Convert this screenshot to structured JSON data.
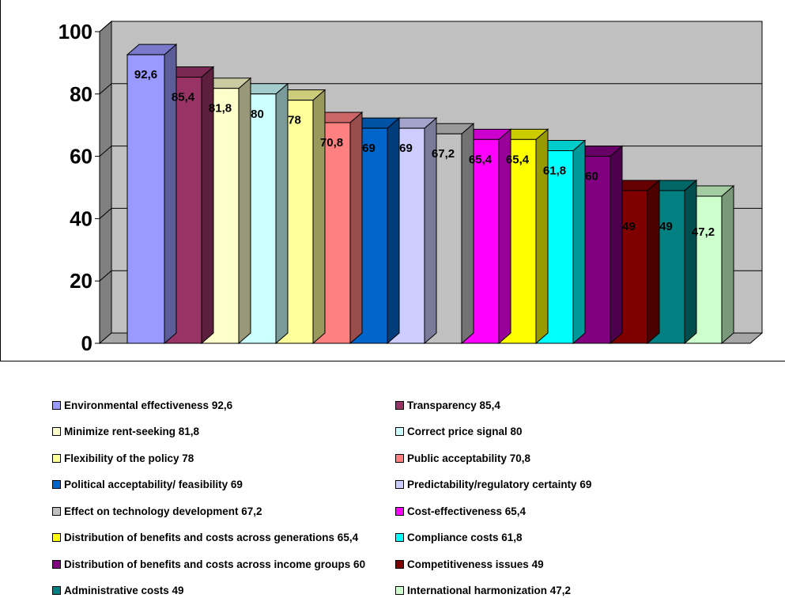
{
  "chart_data": {
    "type": "bar",
    "ylim": [
      0,
      100
    ],
    "yticks": [
      "0",
      "20",
      "40",
      "60",
      "80",
      "100"
    ],
    "grid": true,
    "legend_position": "bottom",
    "series": [
      {
        "label": "Environmental effectiveness 92,6",
        "value": 92.6,
        "value_text": "92,6",
        "color": "#9999ff"
      },
      {
        "label": "Transparency 85,4",
        "value": 85.4,
        "value_text": "85,4",
        "color": "#993366"
      },
      {
        "label": "Minimize rent-seeking 81,8",
        "value": 81.8,
        "value_text": "81,8",
        "color": "#ffffcc"
      },
      {
        "label": "Correct price signal 80",
        "value": 80,
        "value_text": "80",
        "color": "#ccffff"
      },
      {
        "label": "Flexibility of the policy 78",
        "value": 78,
        "value_text": "78",
        "color": "#ffff99"
      },
      {
        "label": "Public acceptability 70,8",
        "value": 70.8,
        "value_text": "70,8",
        "color": "#ff8080"
      },
      {
        "label": "Political acceptability/ feasibility 69",
        "value": 69,
        "value_text": "69",
        "color": "#0066cc"
      },
      {
        "label": "Predictability/regulatory  certainty 69",
        "value": 69,
        "value_text": "69",
        "color": "#ccccff"
      },
      {
        "label": "Effect on technology  development 67,2",
        "value": 67.2,
        "value_text": "67,2",
        "color": "#c0c0c0"
      },
      {
        "label": "Cost-effectiveness 65,4",
        "value": 65.4,
        "value_text": "65,4",
        "color": "#ff00ff"
      },
      {
        "label": "Distribution of benefits and costs across generations 65,4",
        "value": 65.4,
        "value_text": "65,4",
        "color": "#ffff00"
      },
      {
        "label": "Compliance costs 61,8",
        "value": 61.8,
        "value_text": "61,8",
        "color": "#00ffff"
      },
      {
        "label": "Distribution of benefits and costs across income groups 60",
        "value": 60,
        "value_text": "60",
        "color": "#800080"
      },
      {
        "label": "Competitiveness issues 49",
        "value": 49,
        "value_text": "49",
        "color": "#800000"
      },
      {
        "label": "Administrative costs 49",
        "value": 49,
        "value_text": "49",
        "color": "#008080"
      },
      {
        "label": "International harmonization 47,2",
        "value": 47.2,
        "value_text": "47,2",
        "color": "#ccffcc"
      }
    ]
  },
  "colors": {
    "plot_wall": "#c0c0c0",
    "plot_side_wall": "#808080",
    "floor": "#a6a6a6",
    "gridline": "#000000"
  }
}
